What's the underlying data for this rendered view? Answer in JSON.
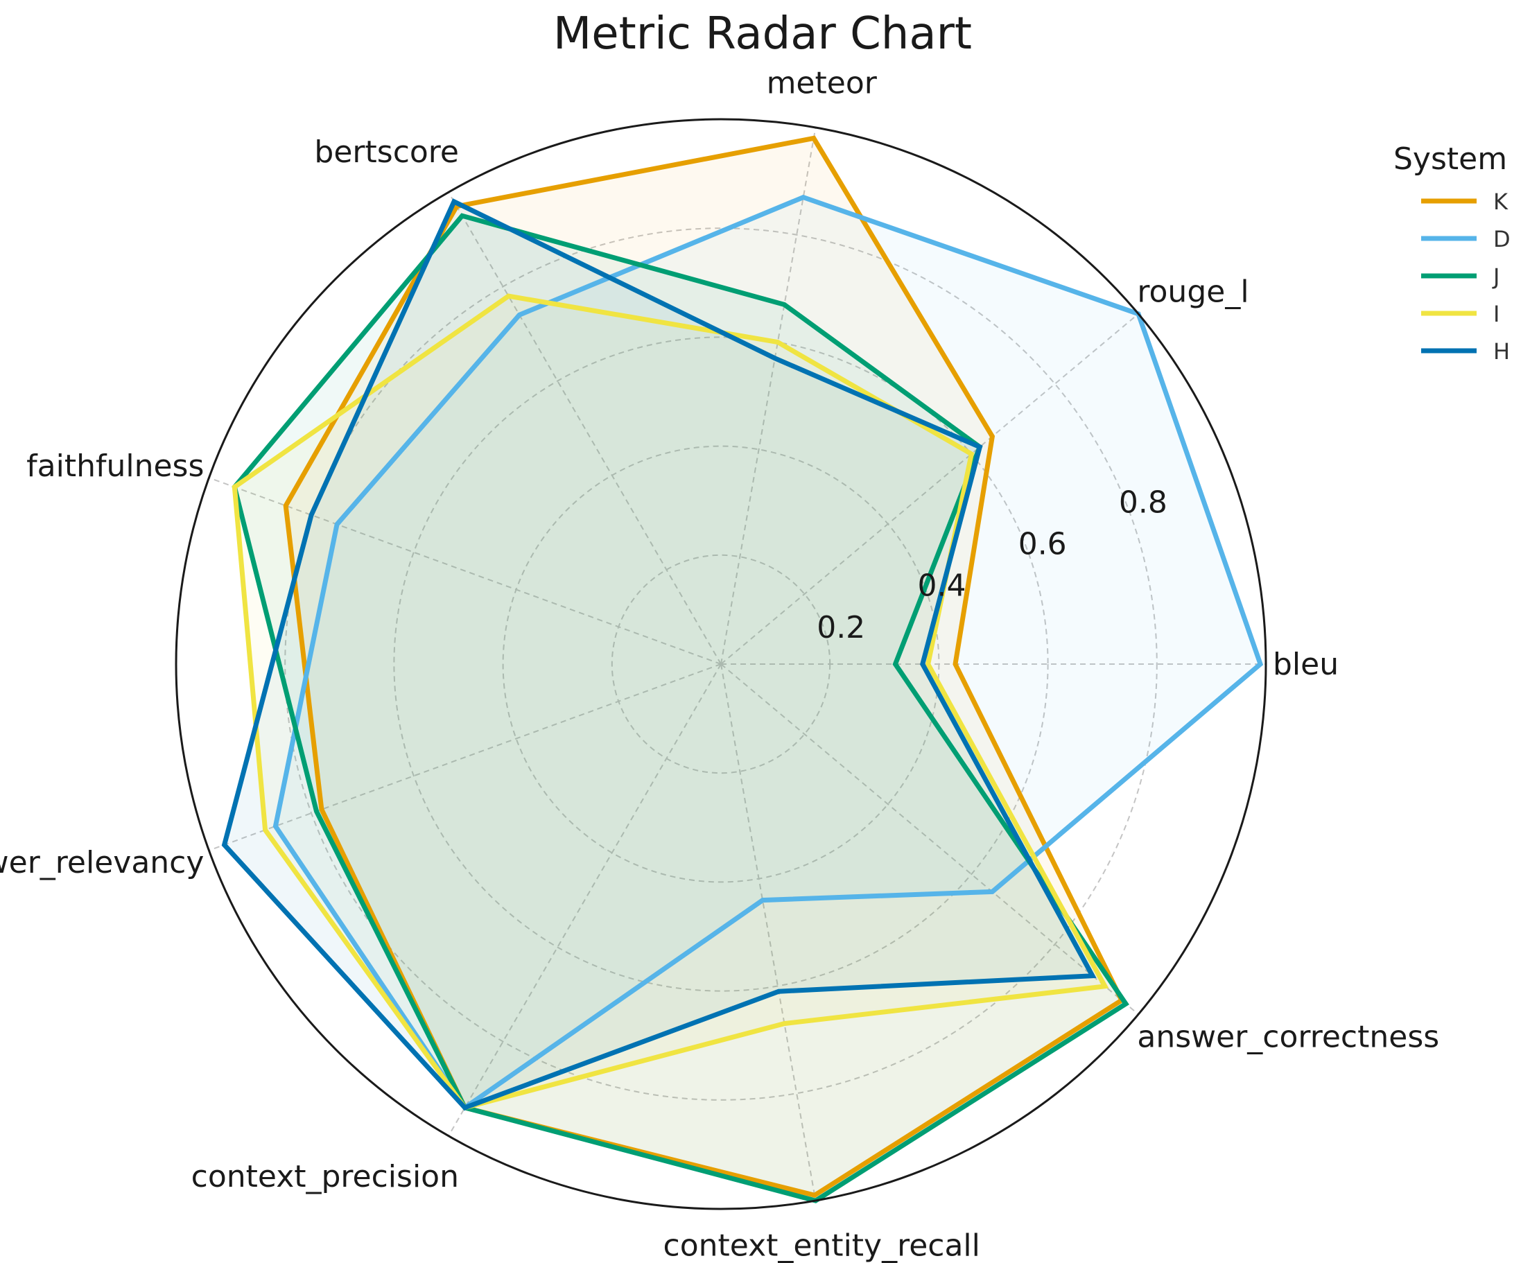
{
  "chart_data": {
    "type": "radar",
    "title": "Metric Radar Chart",
    "axes": [
      "bleu",
      "rouge_l",
      "meteor",
      "bertscore",
      "faithfulness",
      "answer_relevancy",
      "context_precision",
      "context_entity_recall",
      "answer_correctness"
    ],
    "rlim": [
      0,
      1.0
    ],
    "rticks": [
      0.2,
      0.4,
      0.6,
      0.8
    ],
    "rtick_labels": [
      "0.2",
      "0.4",
      "0.6",
      "0.8"
    ],
    "grid": true,
    "legend": {
      "title": "System",
      "placement": "top-right, outside"
    },
    "series": [
      {
        "name": "K",
        "color": "#E69F00",
        "values": [
          0.43,
          0.65,
          0.98,
          0.97,
          0.85,
          0.78,
          0.94,
          0.99,
          0.96
        ]
      },
      {
        "name": "D",
        "color": "#56B4E9",
        "values": [
          0.99,
          1.0,
          0.87,
          0.74,
          0.75,
          0.87,
          0.94,
          0.44,
          0.65
        ]
      },
      {
        "name": "J",
        "color": "#009E73",
        "values": [
          0.32,
          0.62,
          0.67,
          0.95,
          0.95,
          0.79,
          0.94,
          1.0,
          0.97
        ]
      },
      {
        "name": "I",
        "color": "#F0E442",
        "values": [
          0.38,
          0.6,
          0.6,
          0.78,
          0.95,
          0.89,
          0.94,
          0.67,
          0.92
        ]
      },
      {
        "name": "H",
        "color": "#0072B2",
        "values": [
          0.37,
          0.62,
          0.57,
          0.98,
          0.8,
          0.97,
          0.94,
          0.61,
          0.89
        ]
      }
    ]
  }
}
